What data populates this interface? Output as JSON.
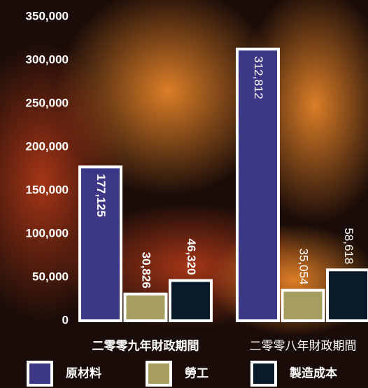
{
  "chart_data": {
    "type": "bar",
    "categories": [
      "二零零九年財政期間",
      "二零零八年財政期間"
    ],
    "series": [
      {
        "name": "原材料",
        "color": "#3d3886",
        "values": [
          177125,
          312812
        ],
        "value_labels": [
          "177,125",
          "312,812"
        ]
      },
      {
        "name": "勞工",
        "color": "#a69e5e",
        "values": [
          30826,
          35054
        ],
        "value_labels": [
          "30,826",
          "35,054"
        ]
      },
      {
        "name": "製造成本",
        "color": "#0b1a28",
        "values": [
          46320,
          58618
        ],
        "value_labels": [
          "46,320",
          "58,618"
        ]
      }
    ],
    "ylim": [
      0,
      350000
    ],
    "yticks": [
      {
        "value": 0,
        "label": "0"
      },
      {
        "value": 50000,
        "label": "50,000"
      },
      {
        "value": 100000,
        "label": "100,000"
      },
      {
        "value": 150000,
        "label": "150,000"
      },
      {
        "value": 200000,
        "label": "200,000"
      },
      {
        "value": 250000,
        "label": "250,000"
      },
      {
        "value": 300000,
        "label": "300,000"
      },
      {
        "value": 350000,
        "label": "350,000"
      }
    ],
    "grid": false
  }
}
